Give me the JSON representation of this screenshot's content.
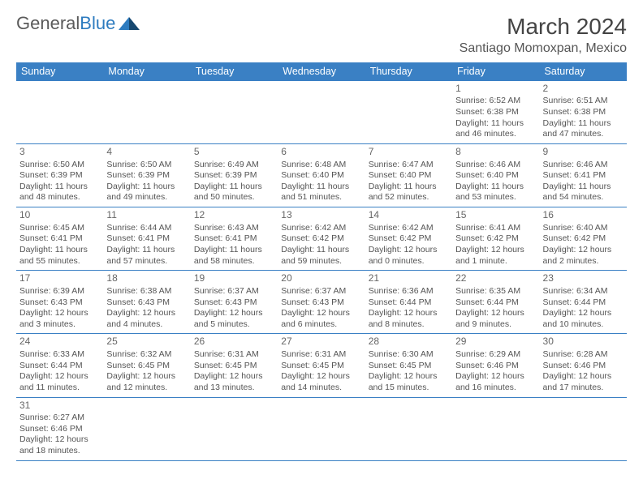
{
  "logo": {
    "text1": "General",
    "text2": "Blue"
  },
  "title": "March 2024",
  "location": "Santiago Momoxpan, Mexico",
  "colors": {
    "header_bg": "#3a80c4",
    "header_text": "#ffffff",
    "border": "#3a80c4",
    "body_text": "#555555",
    "logo_gray": "#5a5a5a",
    "logo_blue": "#2d7bbf"
  },
  "day_headers": [
    "Sunday",
    "Monday",
    "Tuesday",
    "Wednesday",
    "Thursday",
    "Friday",
    "Saturday"
  ],
  "weeks": [
    [
      null,
      null,
      null,
      null,
      null,
      {
        "n": "1",
        "sr": "6:52 AM",
        "ss": "6:38 PM",
        "dl": "11 hours and 46 minutes."
      },
      {
        "n": "2",
        "sr": "6:51 AM",
        "ss": "6:38 PM",
        "dl": "11 hours and 47 minutes."
      }
    ],
    [
      {
        "n": "3",
        "sr": "6:50 AM",
        "ss": "6:39 PM",
        "dl": "11 hours and 48 minutes."
      },
      {
        "n": "4",
        "sr": "6:50 AM",
        "ss": "6:39 PM",
        "dl": "11 hours and 49 minutes."
      },
      {
        "n": "5",
        "sr": "6:49 AM",
        "ss": "6:39 PM",
        "dl": "11 hours and 50 minutes."
      },
      {
        "n": "6",
        "sr": "6:48 AM",
        "ss": "6:40 PM",
        "dl": "11 hours and 51 minutes."
      },
      {
        "n": "7",
        "sr": "6:47 AM",
        "ss": "6:40 PM",
        "dl": "11 hours and 52 minutes."
      },
      {
        "n": "8",
        "sr": "6:46 AM",
        "ss": "6:40 PM",
        "dl": "11 hours and 53 minutes."
      },
      {
        "n": "9",
        "sr": "6:46 AM",
        "ss": "6:41 PM",
        "dl": "11 hours and 54 minutes."
      }
    ],
    [
      {
        "n": "10",
        "sr": "6:45 AM",
        "ss": "6:41 PM",
        "dl": "11 hours and 55 minutes."
      },
      {
        "n": "11",
        "sr": "6:44 AM",
        "ss": "6:41 PM",
        "dl": "11 hours and 57 minutes."
      },
      {
        "n": "12",
        "sr": "6:43 AM",
        "ss": "6:41 PM",
        "dl": "11 hours and 58 minutes."
      },
      {
        "n": "13",
        "sr": "6:42 AM",
        "ss": "6:42 PM",
        "dl": "11 hours and 59 minutes."
      },
      {
        "n": "14",
        "sr": "6:42 AM",
        "ss": "6:42 PM",
        "dl": "12 hours and 0 minutes."
      },
      {
        "n": "15",
        "sr": "6:41 AM",
        "ss": "6:42 PM",
        "dl": "12 hours and 1 minute."
      },
      {
        "n": "16",
        "sr": "6:40 AM",
        "ss": "6:42 PM",
        "dl": "12 hours and 2 minutes."
      }
    ],
    [
      {
        "n": "17",
        "sr": "6:39 AM",
        "ss": "6:43 PM",
        "dl": "12 hours and 3 minutes."
      },
      {
        "n": "18",
        "sr": "6:38 AM",
        "ss": "6:43 PM",
        "dl": "12 hours and 4 minutes."
      },
      {
        "n": "19",
        "sr": "6:37 AM",
        "ss": "6:43 PM",
        "dl": "12 hours and 5 minutes."
      },
      {
        "n": "20",
        "sr": "6:37 AM",
        "ss": "6:43 PM",
        "dl": "12 hours and 6 minutes."
      },
      {
        "n": "21",
        "sr": "6:36 AM",
        "ss": "6:44 PM",
        "dl": "12 hours and 8 minutes."
      },
      {
        "n": "22",
        "sr": "6:35 AM",
        "ss": "6:44 PM",
        "dl": "12 hours and 9 minutes."
      },
      {
        "n": "23",
        "sr": "6:34 AM",
        "ss": "6:44 PM",
        "dl": "12 hours and 10 minutes."
      }
    ],
    [
      {
        "n": "24",
        "sr": "6:33 AM",
        "ss": "6:44 PM",
        "dl": "12 hours and 11 minutes."
      },
      {
        "n": "25",
        "sr": "6:32 AM",
        "ss": "6:45 PM",
        "dl": "12 hours and 12 minutes."
      },
      {
        "n": "26",
        "sr": "6:31 AM",
        "ss": "6:45 PM",
        "dl": "12 hours and 13 minutes."
      },
      {
        "n": "27",
        "sr": "6:31 AM",
        "ss": "6:45 PM",
        "dl": "12 hours and 14 minutes."
      },
      {
        "n": "28",
        "sr": "6:30 AM",
        "ss": "6:45 PM",
        "dl": "12 hours and 15 minutes."
      },
      {
        "n": "29",
        "sr": "6:29 AM",
        "ss": "6:46 PM",
        "dl": "12 hours and 16 minutes."
      },
      {
        "n": "30",
        "sr": "6:28 AM",
        "ss": "6:46 PM",
        "dl": "12 hours and 17 minutes."
      }
    ],
    [
      {
        "n": "31",
        "sr": "6:27 AM",
        "ss": "6:46 PM",
        "dl": "12 hours and 18 minutes."
      },
      null,
      null,
      null,
      null,
      null,
      null
    ]
  ],
  "labels": {
    "sunrise": "Sunrise:",
    "sunset": "Sunset:",
    "daylight": "Daylight:"
  }
}
